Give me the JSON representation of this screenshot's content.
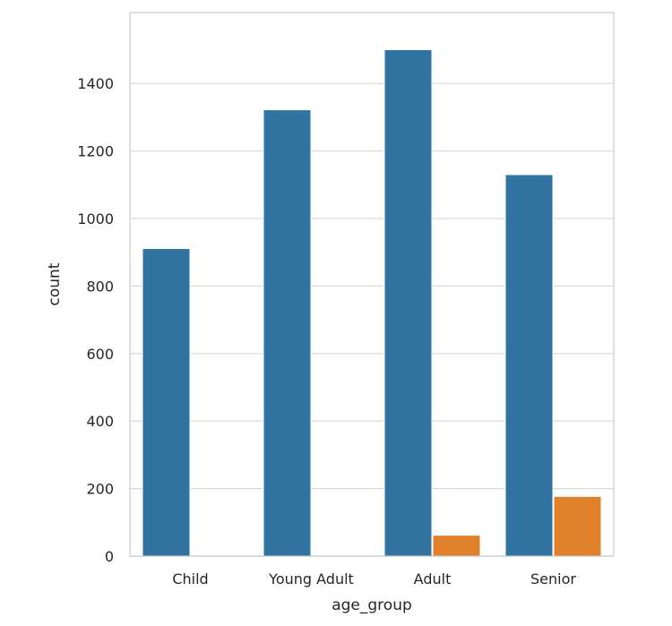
{
  "chart_data": {
    "type": "bar",
    "categories": [
      "Child",
      "Young Adult",
      "Adult",
      "Senior"
    ],
    "series": [
      {
        "values": [
          911,
          1322,
          1500,
          1130
        ],
        "color": "#3274a1"
      },
      {
        "values": [
          0,
          0,
          62,
          177
        ],
        "color": "#e1812c"
      }
    ],
    "xlabel": "age_group",
    "ylabel": "count",
    "ylim": [
      0,
      1610
    ],
    "yticks": [
      0,
      200,
      400,
      600,
      800,
      1000,
      1200,
      1400
    ],
    "grid": true,
    "legend": "none"
  }
}
